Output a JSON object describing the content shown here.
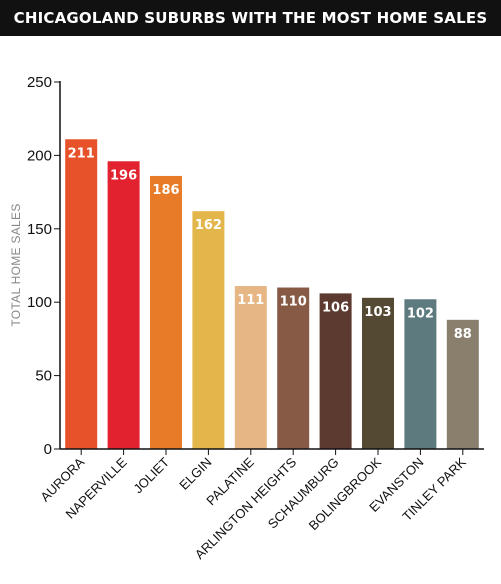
{
  "chart_data": {
    "type": "bar",
    "title": "CHICAGOLAND SUBURBS WITH THE MOST HOME SALES",
    "ylabel": "TOTAL HOME SALES",
    "xlabel": "",
    "ylim": [
      0,
      250
    ],
    "yticks": [
      0,
      50,
      100,
      150,
      200,
      250
    ],
    "grid": false,
    "data_labels": true,
    "categories": [
      "AURORA",
      "NAPERVILLE",
      "JOLIET",
      "ELGIN",
      "PALATINE",
      "ARLINGTON HEIGHTS",
      "SCHAUMBURG",
      "BOLINGBROOK",
      "EVANSTON",
      "TINLEY PARK"
    ],
    "values": [
      211,
      196,
      186,
      162,
      111,
      110,
      106,
      103,
      102,
      88
    ],
    "colors": [
      "#e8522b",
      "#e32230",
      "#e87b27",
      "#e2b64a",
      "#e6b785",
      "#875a46",
      "#5c3a2f",
      "#544a33",
      "#5d7a7e",
      "#8a7e6d"
    ]
  }
}
